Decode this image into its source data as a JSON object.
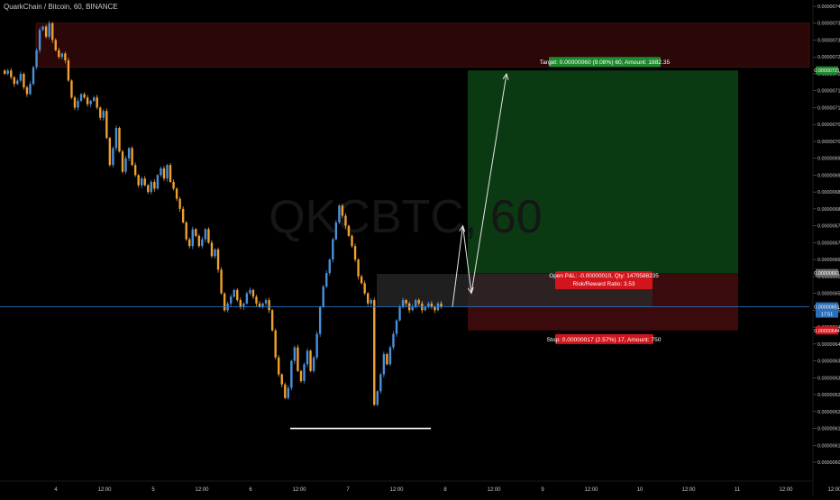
{
  "header": {
    "symbol_title": "QuarkChain / Bitcoin, 60, BINANCE"
  },
  "watermark": "QKCBTC, 60",
  "colors": {
    "background": "#000000",
    "up_candle": "#4a90d9",
    "down_candle": "#f0a030",
    "target_zone": "#0b3a12",
    "stop_zone": "#3a0a0d",
    "supply_zone": "#2b0708",
    "current_price_line": "#2a6fb8",
    "target_label": "#1e8a2e",
    "stop_label": "#d2151c",
    "support_line": "#ffffff"
  },
  "chart_data": {
    "type": "candlestick",
    "title": "QuarkChain / Bitcoin, 60, BINANCE",
    "xlabel": "",
    "ylabel": "",
    "ylim": [
      6.03e-06,
      7.41e-06
    ],
    "grid": false,
    "x_ticks": [
      "4",
      "12:00",
      "5",
      "12:00",
      "6",
      "12:00",
      "7",
      "12:00",
      "8",
      "12:00",
      "9",
      "12:00",
      "10",
      "12:00",
      "11",
      "12:00"
    ],
    "y_ticks": [
      "0.00000740",
      "0.00000735",
      "0.00000730",
      "0.00000725",
      "0.00000720",
      "0.00000715",
      "0.00000710",
      "0.00000705",
      "0.00000700",
      "0.00000695",
      "0.00000690",
      "0.00000685",
      "0.00000680",
      "0.00000675",
      "0.00000670",
      "0.00000665",
      "0.00000660",
      "0.00000655",
      "0.00000650",
      "0.00000645",
      "0.00000640",
      "0.00000635",
      "0.00000630",
      "0.00000625",
      "0.00000620",
      "0.00000615",
      "0.00000610",
      "0.00000605"
    ],
    "candles_close": [
      7.2e-06,
      7.21e-06,
      7.19e-06,
      7.17e-06,
      7.18e-06,
      7.2e-06,
      7.16e-06,
      7.14e-06,
      7.17e-06,
      7.22e-06,
      7.27e-06,
      7.33e-06,
      7.34e-06,
      7.31e-06,
      7.35e-06,
      7.3e-06,
      7.27e-06,
      7.25e-06,
      7.26e-06,
      7.24e-06,
      7.18e-06,
      7.13e-06,
      7.1e-06,
      7.12e-06,
      7.14e-06,
      7.13e-06,
      7.11e-06,
      7.12e-06,
      7.13e-06,
      7.1e-06,
      7.07e-06,
      7.09e-06,
      7.01e-06,
      6.93e-06,
      6.98e-06,
      7.04e-06,
      6.97e-06,
      6.91e-06,
      6.95e-06,
      6.98e-06,
      6.93e-06,
      6.9e-06,
      6.87e-06,
      6.89e-06,
      6.87e-06,
      6.85e-06,
      6.88e-06,
      6.86e-06,
      6.9e-06,
      6.92e-06,
      6.89e-06,
      6.93e-06,
      6.88e-06,
      6.86e-06,
      6.83e-06,
      6.8e-06,
      6.76e-06,
      6.71e-06,
      6.69e-06,
      6.74e-06,
      6.72e-06,
      6.69e-06,
      6.71e-06,
      6.74e-06,
      6.7e-06,
      6.66e-06,
      6.68e-06,
      6.62e-06,
      6.55e-06,
      6.5e-06,
      6.52e-06,
      6.54e-06,
      6.56e-06,
      6.53e-06,
      6.51e-06,
      6.52e-06,
      6.55e-06,
      6.56e-06,
      6.54e-06,
      6.52e-06,
      6.51e-06,
      6.52e-06,
      6.53e-06,
      6.5e-06,
      6.44e-06,
      6.36e-06,
      6.31e-06,
      6.28e-06,
      6.24e-06,
      6.27e-06,
      6.35e-06,
      6.39e-06,
      6.32e-06,
      6.29e-06,
      6.34e-06,
      6.38e-06,
      6.32e-06,
      6.36e-06,
      6.43e-06,
      6.51e-06,
      6.57e-06,
      6.61e-06,
      6.65e-06,
      6.71e-06,
      6.76e-06,
      6.81e-06,
      6.78e-06,
      6.75e-06,
      6.72e-06,
      6.69e-06,
      6.65e-06,
      6.6e-06,
      6.58e-06,
      6.55e-06,
      6.52e-06,
      6.53e-06,
      6.22e-06,
      6.26e-06,
      6.31e-06,
      6.37e-06,
      6.34e-06,
      6.39e-06,
      6.43e-06,
      6.47e-06,
      6.51e-06,
      6.53e-06,
      6.52e-06,
      6.5e-06,
      6.51e-06,
      6.53e-06,
      6.52e-06,
      6.5e-06,
      6.51e-06,
      6.52e-06,
      6.51e-06,
      6.5e-06,
      6.52e-06,
      6.51e-06
    ],
    "current_price": 6.51e-06,
    "current_price_label": "0.00000651",
    "countdown_label": "17:51",
    "position": {
      "type": "long",
      "entry": 6.61e-06,
      "target": 7.21e-06,
      "stop": 6.44e-06,
      "entry_label": "0.00000661",
      "target_axis_label": "0.00000721",
      "stop_axis_label": "0.00000644",
      "target_text": "Target: 0.00000060 (9.08%) 60, Amount: 1882.35",
      "stop_text": "Stop: 0.00000017 (2.57%) 17, Amount: 750",
      "open_pnl_text": "Open P&L: -0.00000010, Qty: 1470588235",
      "risk_reward_text": "Risk/Reward Ratio: 3.53"
    },
    "supply_zone": {
      "top": 7.35e-06,
      "bottom": 7.22e-06
    },
    "support_level": 6.15e-06,
    "projection_path": [
      {
        "x": "8",
        "y": 6.51e-06
      },
      {
        "x": "8 06:00",
        "y": 6.75e-06
      },
      {
        "x": "8 12:00",
        "y": 6.55e-06
      },
      {
        "x": "9",
        "y": 7.2e-06
      }
    ],
    "annotations": [
      "Target",
      "Stop",
      "Open P&L",
      "Risk/Reward Ratio"
    ]
  }
}
